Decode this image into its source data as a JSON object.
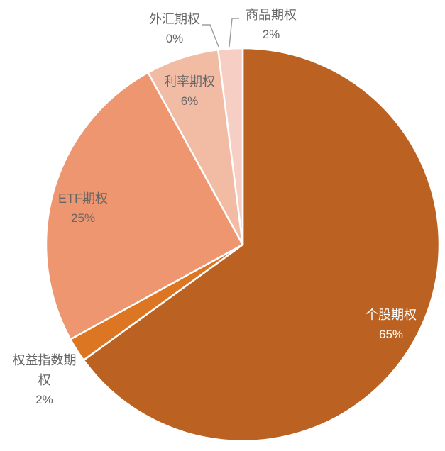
{
  "chart_data": {
    "type": "pie",
    "direction": "clockwise",
    "start_angle_deg": 0,
    "legend": "none",
    "background": "#FFFFFF",
    "label_gray": "#666666",
    "leader_line_color": "#9D9D9D",
    "slice_border_color": "#FFFFFF",
    "slices": [
      {
        "id": "stock-options",
        "label": "个股期权",
        "value_pct": 65,
        "pct_text": "65%",
        "color": "#BB6222",
        "label_placement": "inside",
        "label_text_color": "#FFFFFF"
      },
      {
        "id": "equity-index-options",
        "label": "权益指数期权",
        "value_pct": 2,
        "pct_text": "2%",
        "color": "#DD7622",
        "label_placement": "outside",
        "label_text_color": "#666666"
      },
      {
        "id": "etf-options",
        "label": "ETF期权",
        "value_pct": 25,
        "pct_text": "25%",
        "color": "#EE9670",
        "label_placement": "inside",
        "label_text_color": "#666666"
      },
      {
        "id": "interest-rate-options",
        "label": "利率期权",
        "value_pct": 6,
        "pct_text": "6%",
        "color": "#F2BCA4",
        "label_placement": "inside",
        "label_text_color": "#666666"
      },
      {
        "id": "fx-options",
        "label": "外汇期权",
        "value_pct": 0,
        "pct_text": "0%",
        "color": "#F4C6B4",
        "label_placement": "outside",
        "label_text_color": "#666666"
      },
      {
        "id": "commodity-options",
        "label": "商品期权",
        "value_pct": 2,
        "pct_text": "2%",
        "color": "#F6CEC3",
        "label_placement": "outside",
        "label_text_color": "#666666"
      }
    ]
  }
}
